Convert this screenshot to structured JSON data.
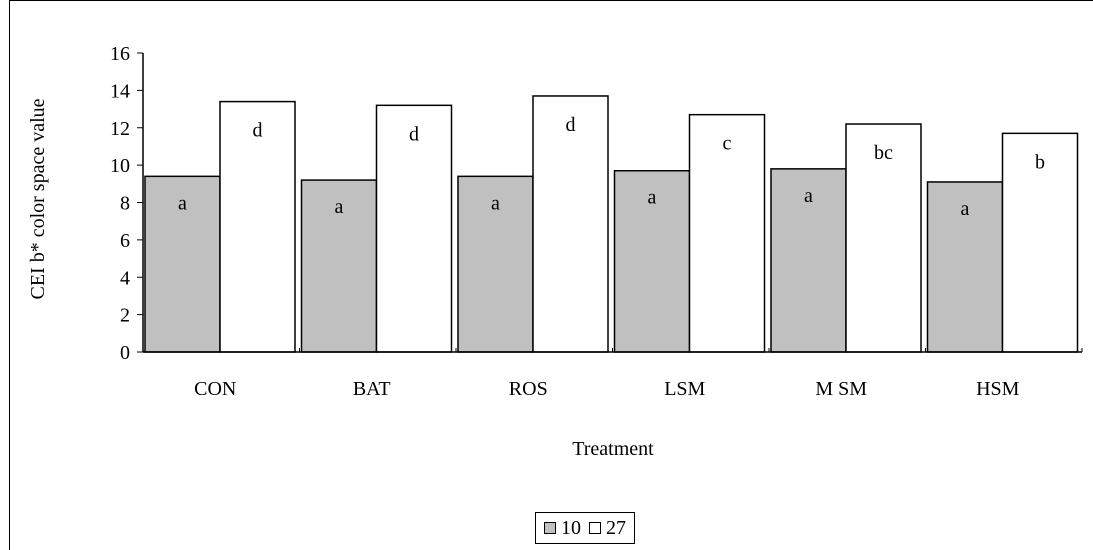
{
  "chart_data": {
    "type": "bar",
    "title": "",
    "xlabel": "Treatment",
    "ylabel": "CEI b* color space value",
    "ylim": [
      0,
      16
    ],
    "yticks": [
      0,
      2,
      4,
      6,
      8,
      10,
      12,
      14,
      16
    ],
    "categories": [
      "CON",
      "BAT",
      "ROS",
      "LSM",
      "M SM",
      "HSM"
    ],
    "series": [
      {
        "name": "10",
        "color": "#c0c0c0",
        "values": [
          9.4,
          9.2,
          9.4,
          9.7,
          9.8,
          9.1
        ],
        "letters": [
          "a",
          "a",
          "a",
          "a",
          "a",
          "a"
        ]
      },
      {
        "name": "27",
        "color": "#ffffff",
        "values": [
          13.4,
          13.2,
          13.7,
          12.7,
          12.2,
          11.7
        ],
        "letters": [
          "d",
          "d",
          "d",
          "c",
          "bc",
          "b"
        ]
      }
    ],
    "grid": false,
    "legend": "bottom-center"
  }
}
